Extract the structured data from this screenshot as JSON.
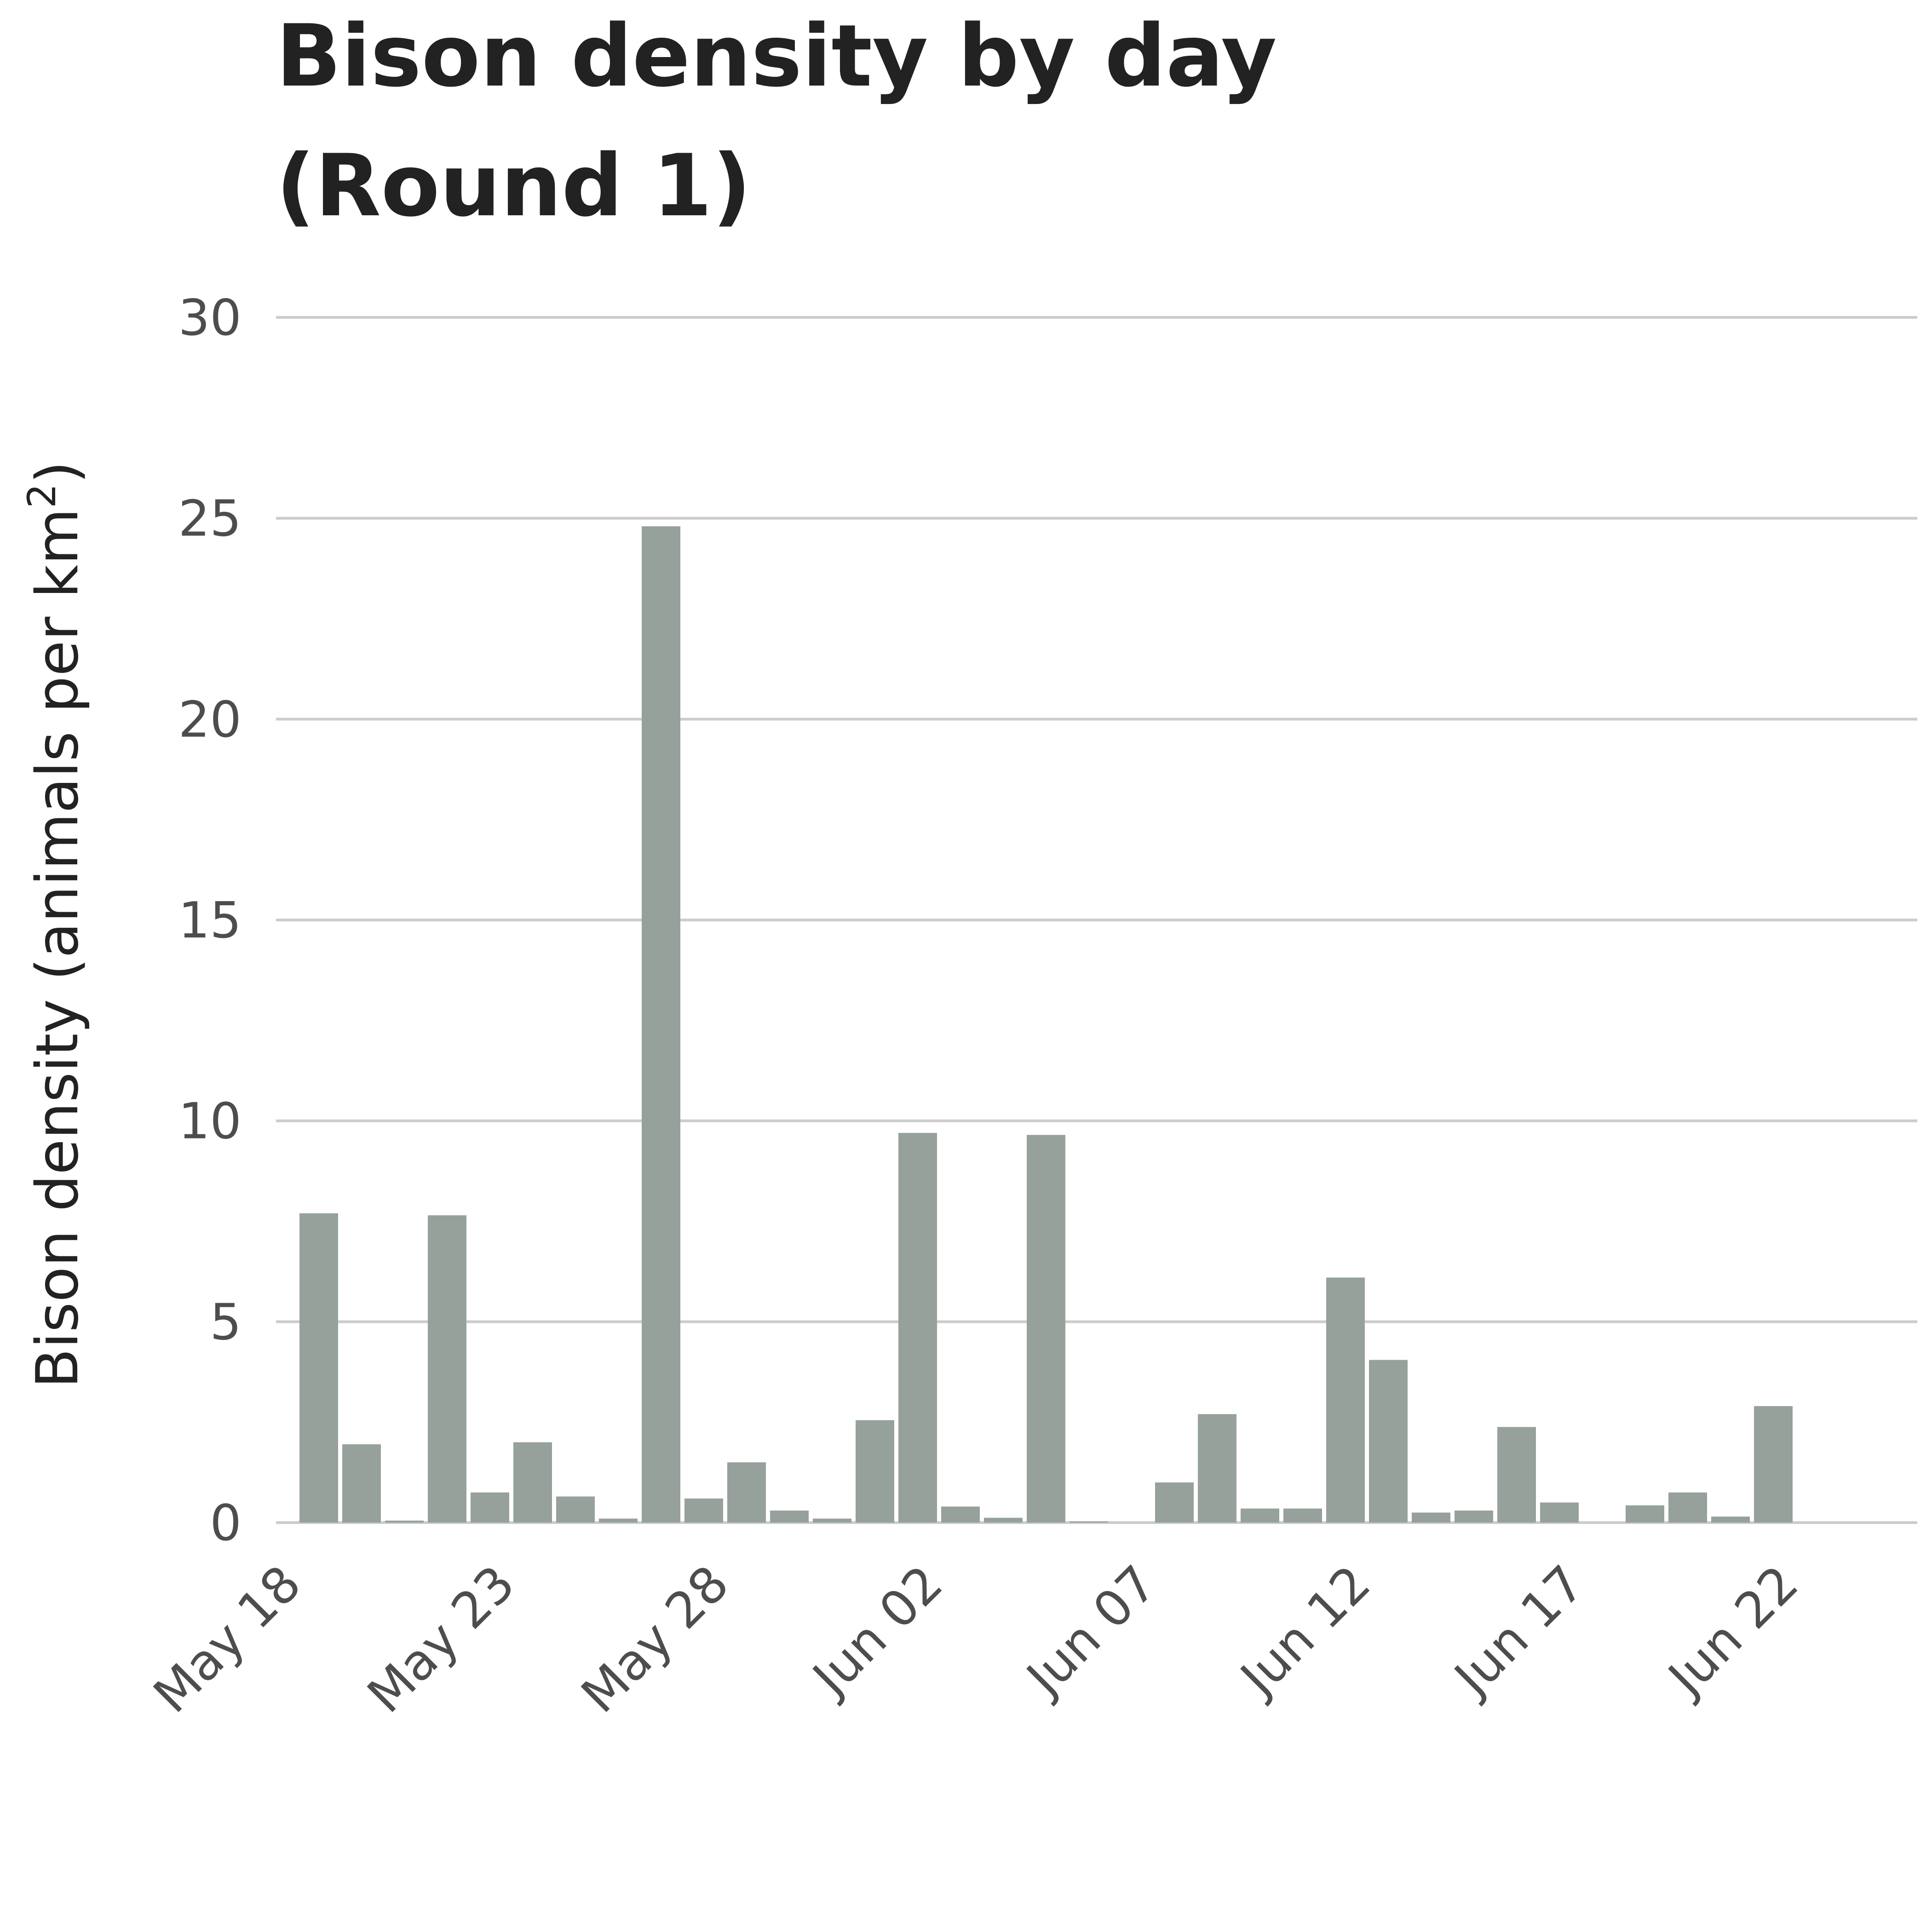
{
  "chart_data": {
    "type": "bar",
    "title_lines": [
      "Bison density by day",
      "(Round 1)"
    ],
    "xlabel": "",
    "ylabel": "Bison density (animals per km",
    "ylabel_superscript": "2",
    "ylabel_suffix": ")",
    "ylim": [
      0,
      30
    ],
    "yticks": [
      0,
      5,
      10,
      15,
      20,
      25,
      30
    ],
    "ytick_labels": [
      "0",
      "5",
      "10",
      "15",
      "20",
      "25",
      "30"
    ],
    "xlim": [
      "May 18",
      "Jun 24"
    ],
    "xtick_labels": [
      "May 18",
      "May 23",
      "May 28",
      "Jun 02",
      "Jun 07",
      "Jun 12",
      "Jun 17",
      "Jun 22"
    ],
    "categories": [
      "May 19",
      "May 20",
      "May 21",
      "May 22",
      "May 23",
      "May 24",
      "May 25",
      "May 26",
      "May 27",
      "May 28",
      "May 29",
      "May 30",
      "May 31",
      "Jun 01",
      "Jun 02",
      "Jun 03",
      "Jun 04",
      "Jun 05",
      "Jun 06",
      "Jun 07",
      "Jun 08",
      "Jun 09",
      "Jun 10",
      "Jun 11",
      "Jun 12",
      "Jun 13",
      "Jun 14",
      "Jun 15",
      "Jun 16",
      "Jun 17",
      "Jun 18",
      "Jun 19",
      "Jun 20",
      "Jun 21",
      "Jun 22",
      "Jun 23"
    ],
    "values": [
      7.7,
      1.95,
      0.05,
      7.65,
      0.75,
      2.0,
      0.65,
      0.1,
      24.8,
      0.6,
      1.5,
      0.3,
      0.1,
      2.55,
      9.7,
      0.4,
      0.12,
      9.65,
      0.03,
      0.0,
      1.0,
      2.7,
      0.35,
      0.35,
      6.1,
      4.05,
      0.25,
      0.3,
      2.38,
      0.5,
      0.0,
      0.43,
      0.75,
      0.15,
      2.9,
      0.0
    ],
    "grid": true,
    "legend": "none",
    "bar_color": "#97a19b"
  }
}
